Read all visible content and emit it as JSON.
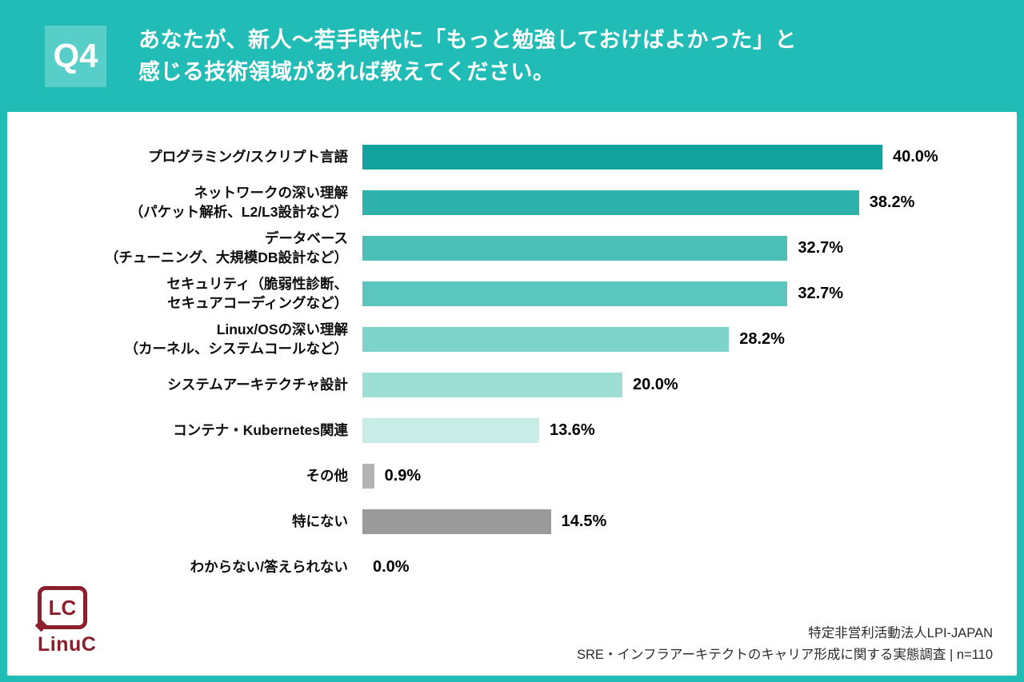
{
  "header": {
    "badge": "Q4",
    "title_lines": [
      "あなたが、新人〜若手時代に「もっと勉強しておけばよかった」と",
      "感じる技術領域があれば教えてください。"
    ]
  },
  "chart_data": {
    "type": "bar",
    "orientation": "horizontal",
    "xlim": [
      0,
      40
    ],
    "xmax": 40,
    "grid": false,
    "legend": "none",
    "categories": [
      [
        "プログラミング/スクリプト言語"
      ],
      [
        "ネットワークの深い理解",
        "（パケット解析、L2/L3設計など）"
      ],
      [
        "データベース",
        "（チューニング、大規模DB設計など）"
      ],
      [
        "セキュリティ（脆弱性診断、",
        "セキュアコーディングなど）"
      ],
      [
        "Linux/OSの深い理解",
        "（カーネル、システムコールなど）"
      ],
      [
        "システムアーキテクチャ設計"
      ],
      [
        "コンテナ・Kubernetes関連"
      ],
      [
        "その他"
      ],
      [
        "特にない"
      ],
      [
        "わからない/答えられない"
      ]
    ],
    "values": [
      40.0,
      38.2,
      32.7,
      32.7,
      28.2,
      20.0,
      13.6,
      0.9,
      14.5,
      0.0
    ],
    "value_labels": [
      "40.0%",
      "38.2%",
      "32.7%",
      "32.7%",
      "28.2%",
      "20.0%",
      "13.6%",
      "0.9%",
      "14.5%",
      "0.0%"
    ],
    "bar_colors": [
      "#13A39E",
      "#2FB2AB",
      "#4CBFB7",
      "#5AC6BD",
      "#7DD2C9",
      "#9EDFD5",
      "#C7EDE6",
      "#B3B3B3",
      "#9A9A9A",
      "#CCCCCC"
    ]
  },
  "logo": {
    "mark": "LC",
    "name": "LinuC"
  },
  "footer": {
    "org": "特定非営利活動法人LPI-JAPAN",
    "survey": "SRE・インフラアーキテクトのキャリア形成に関する実態調査 | n=110"
  },
  "colors": {
    "background_teal": "#22BCB6",
    "badge_teal": "#57CEC8",
    "card_white": "#FFFFFF",
    "logo_maroon": "#8B1F2C",
    "text_black": "#0D0D0D"
  }
}
